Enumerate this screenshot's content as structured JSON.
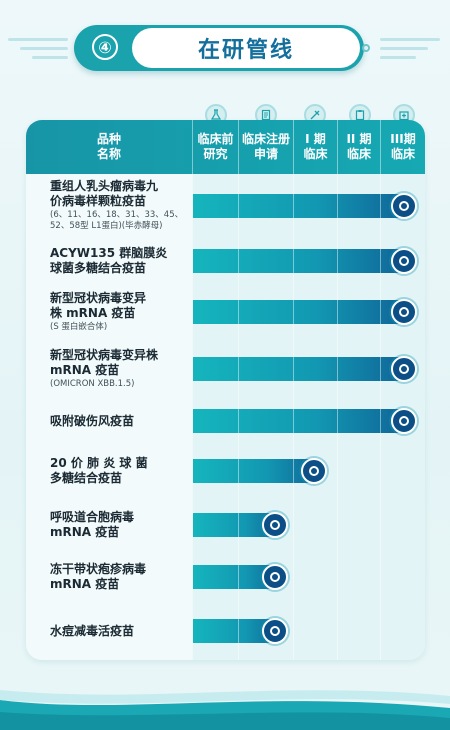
{
  "header": {
    "number": "④",
    "title": "在研管线"
  },
  "table": {
    "columns": [
      {
        "label": "品种\n名称",
        "icon": "none"
      },
      {
        "label": "临床前\n研究",
        "icon": "flask-icon"
      },
      {
        "label": "临床注册\n申请",
        "icon": "document-icon"
      },
      {
        "label": "I 期\n临床",
        "icon": "syringe-icon"
      },
      {
        "label": "II 期\n临床",
        "icon": "clipboard-icon"
      },
      {
        "label": "III期\n临床",
        "icon": "hospital-icon"
      }
    ],
    "rows": [
      {
        "name": "重组人乳头瘤病毒九\n价病毒样颗粒疫苗",
        "note": "(6、11、16、18、31、33、45、\n52、58型 L1蛋白)(毕赤酵母)",
        "reached_stage": "III期临床"
      },
      {
        "name": "ACYW135  群脑膜炎\n球菌多糖结合疫苗",
        "note": "",
        "reached_stage": "III期临床"
      },
      {
        "name": "新型冠状病毒变异\n株 mRNA 疫苗",
        "note": "(S 蛋白嵌合体)",
        "reached_stage": "III期临床"
      },
      {
        "name": "新型冠状病毒变异株\nmRNA 疫苗",
        "note": "(OMICRON XBB.1.5)",
        "reached_stage": "III期临床"
      },
      {
        "name": "吸附破伤风疫苗",
        "note": "",
        "reached_stage": "III期临床"
      },
      {
        "name": "20  价 肺 炎 球 菌\n多糖结合疫苗",
        "note": "",
        "reached_stage": "I 期临床"
      },
      {
        "name": "呼吸道合胞病毒\nmRNA 疫苗",
        "note": "",
        "reached_stage": "临床注册申请"
      },
      {
        "name": "冻干带状疱疹病毒\nmRNA 疫苗",
        "note": "",
        "reached_stage": "临床注册申请"
      },
      {
        "name": "水痘减毒活疫苗",
        "note": "",
        "reached_stage": "临床注册申请"
      }
    ]
  },
  "colors": {
    "accent": "#1aa2ad",
    "title": "#146f9c",
    "bar_end": "#0f5f95"
  }
}
